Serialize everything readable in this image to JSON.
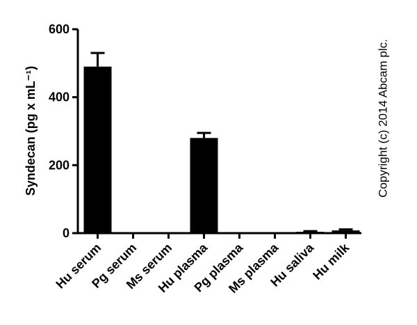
{
  "chart_data": {
    "type": "bar",
    "y_label": "Syndecan (pg x mL⁻¹)",
    "annotation": "Copyright (c) 2014 Abcam plc.",
    "categories": [
      "Hu serum",
      "Pg serum",
      "Ms serum",
      "Hu plasma",
      "Pg plasma",
      "Ms plasma",
      "Hu saliva",
      "Hu milk"
    ],
    "values": [
      490,
      0,
      0,
      280,
      0,
      0,
      4,
      8
    ],
    "errors": [
      40,
      0,
      0,
      15,
      0,
      0,
      2,
      3
    ],
    "color": "#000000",
    "ylim": [
      0,
      600
    ],
    "yticks": [
      0,
      200,
      400,
      600
    ],
    "grid": false
  }
}
